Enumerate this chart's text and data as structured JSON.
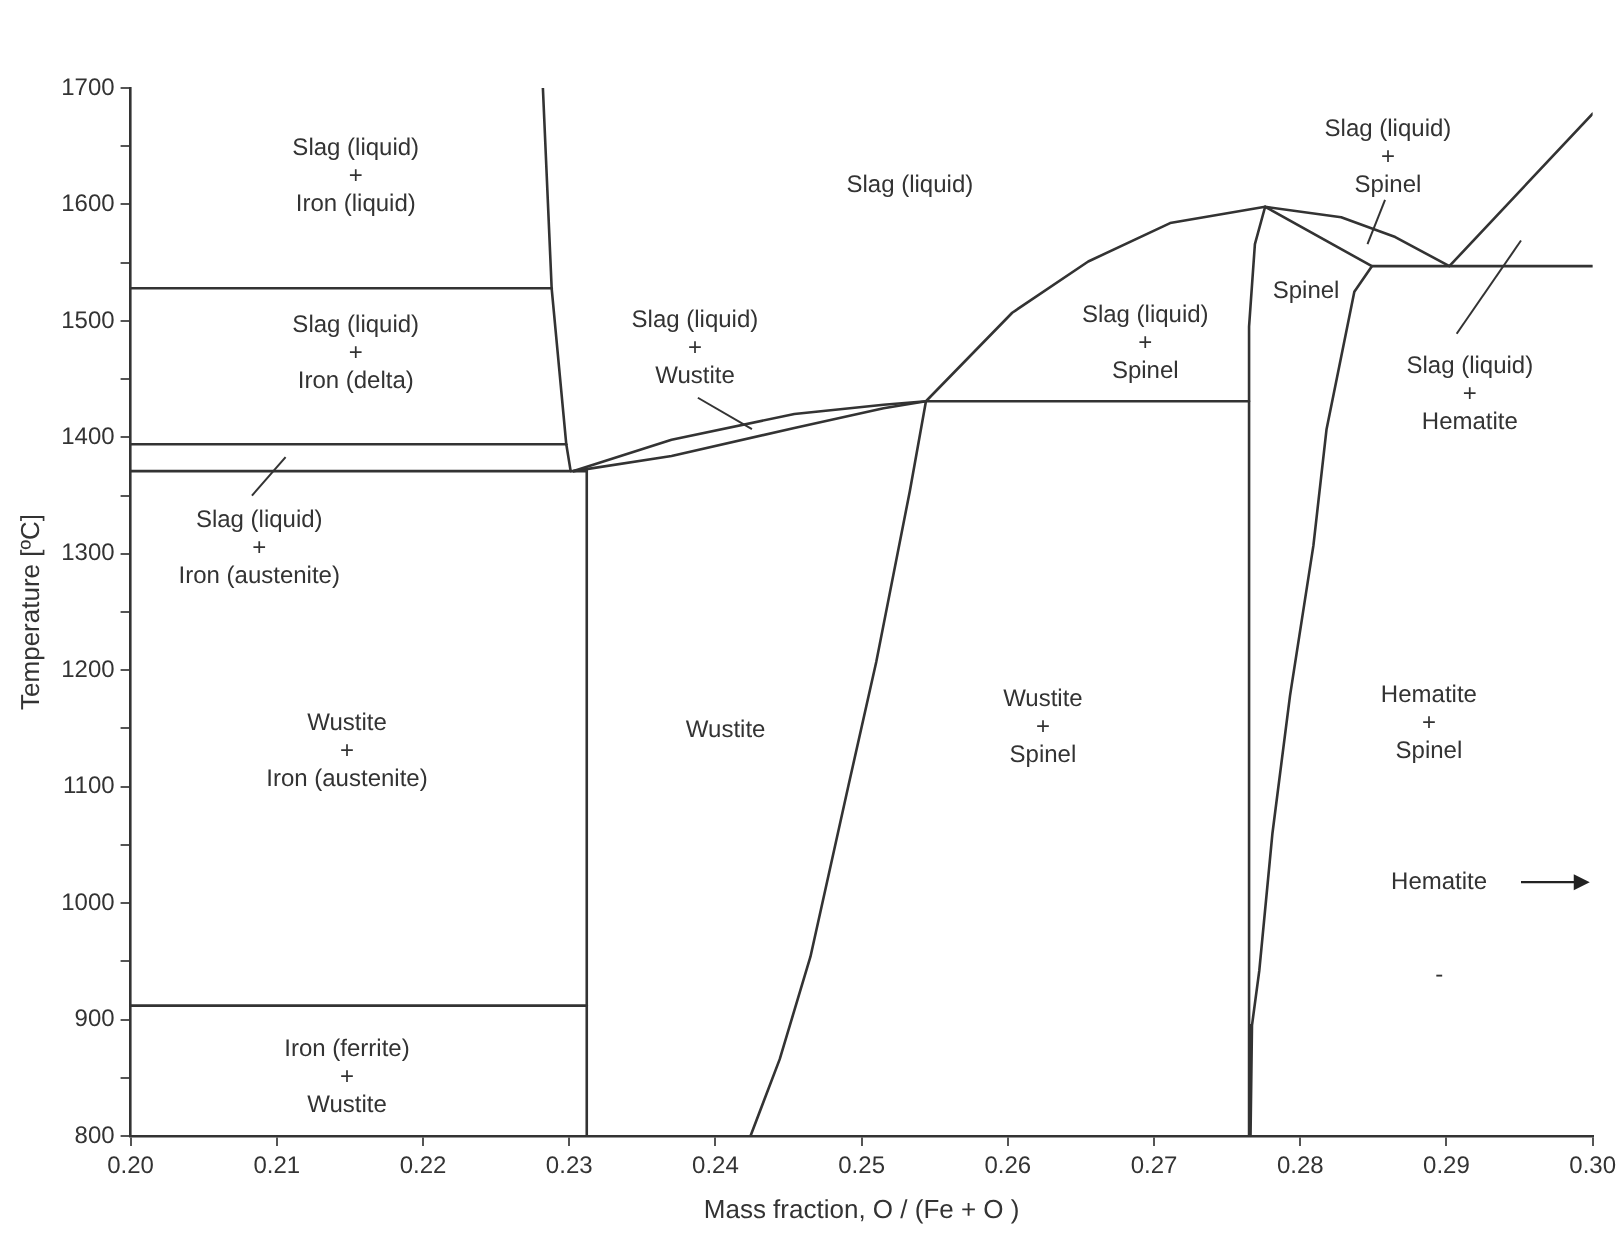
{
  "chart_data": {
    "type": "line",
    "xlabel": "Mass fraction, O / (Fe + O )",
    "ylabel": "Temperature [ºC]",
    "xlim": [
      0.2,
      0.3
    ],
    "ylim": [
      800,
      1700
    ],
    "xticks": [
      {
        "value": 0.2,
        "label": "0.20"
      },
      {
        "value": 0.21,
        "label": "0.21"
      },
      {
        "value": 0.22,
        "label": "0.22"
      },
      {
        "value": 0.23,
        "label": "0.23"
      },
      {
        "value": 0.24,
        "label": "0.24"
      },
      {
        "value": 0.25,
        "label": "0.25"
      },
      {
        "value": 0.26,
        "label": "0.26"
      },
      {
        "value": 0.27,
        "label": "0.27"
      },
      {
        "value": 0.28,
        "label": "0.28"
      },
      {
        "value": 0.29,
        "label": "0.29"
      },
      {
        "value": 0.3,
        "label": "0.30"
      }
    ],
    "yticks": [
      800,
      {
        "value": 850,
        "label": null
      },
      900,
      {
        "value": 950,
        "label": null
      },
      1000,
      {
        "value": 1050,
        "label": null
      },
      1100,
      {
        "value": 1150,
        "label": null
      },
      1200,
      {
        "value": 1250,
        "label": null
      },
      1300,
      {
        "value": 1350,
        "label": null
      },
      1400,
      {
        "value": 1450,
        "label": null
      },
      1500,
      {
        "value": 1550,
        "label": null
      },
      1600,
      {
        "value": 1650,
        "label": null
      },
      1700
    ],
    "grid": false,
    "legend": false,
    "marker": "none",
    "line_style": "solid",
    "series": [
      {
        "color": "#333333",
        "x": [
          0.2282,
          0.2288,
          0.2298,
          0.2301
        ],
        "values": [
          1700,
          1528,
          1394,
          1371
        ]
      },
      {
        "color": "#333333",
        "x": [
          0.2,
          0.2288
        ],
        "values": [
          1528,
          1528
        ]
      },
      {
        "color": "#333333",
        "x": [
          0.2,
          0.2298
        ],
        "values": [
          1394,
          1394
        ]
      },
      {
        "color": "#333333",
        "x": [
          0.2,
          0.2312
        ],
        "values": [
          1371,
          1371
        ]
      },
      {
        "color": "#333333",
        "x": [
          0.2,
          0.2312
        ],
        "values": [
          912,
          912
        ]
      },
      {
        "color": "#333333",
        "x": [
          0.2312,
          0.2312
        ],
        "values": [
          800,
          1371
        ]
      },
      {
        "color": "#333333",
        "x": [
          0.2303,
          0.237,
          0.2454,
          0.2515,
          0.2544,
          0.2765
        ],
        "values": [
          1371,
          1398,
          1420,
          1428,
          1431,
          1431
        ]
      },
      {
        "color": "#333333",
        "x": [
          0.2303,
          0.237,
          0.2454,
          0.2515,
          0.2544
        ],
        "values": [
          1371,
          1384,
          1408,
          1425,
          1431
        ]
      },
      {
        "color": "#333333",
        "x": [
          0.2544,
          0.2533,
          0.251,
          0.2491,
          0.2465,
          0.2444,
          0.2424
        ],
        "values": [
          1431,
          1354,
          1207,
          1101,
          954,
          866,
          800
        ]
      },
      {
        "color": "#333333",
        "x": [
          0.2544,
          0.2603,
          0.2655,
          0.2711,
          0.2776,
          0.2828,
          0.2865,
          0.2902,
          0.3
        ],
        "values": [
          1431,
          1507,
          1551,
          1584,
          1598,
          1589,
          1572,
          1547,
          1678
        ]
      },
      {
        "color": "#333333",
        "x": [
          0.2776,
          0.2849,
          0.3
        ],
        "values": [
          1598,
          1547,
          1547
        ]
      },
      {
        "color": "#333333",
        "x": [
          0.2776,
          0.2769,
          0.2765,
          0.2765
        ],
        "values": [
          1598,
          1566,
          1495,
          800
        ]
      },
      {
        "color": "#333333",
        "x": [
          0.2849,
          0.2837,
          0.2818,
          0.2809,
          0.2793,
          0.2781,
          0.2772,
          0.2767,
          0.2766
        ],
        "values": [
          1547,
          1525,
          1407,
          1307,
          1178,
          1060,
          942,
          895,
          800
        ]
      }
    ],
    "annotations": [
      "Slag (liquid)\n+\nIron (liquid)",
      "Slag (liquid)\n+\nIron (delta)",
      "Slag (liquid)\n+\nIron (austenite)",
      "Wustite\n+\nIron (austenite)",
      "Iron (ferrite)\n+\nWustite",
      "Slag (liquid)\n+\nWustite",
      "Slag (liquid)",
      "Wustite",
      "Wustite\n+\nSpinel",
      "Slag (liquid)\n+\nSpinel",
      "Slag (liquid)\n+\nSpinel",
      "Spinel",
      "Slag (liquid)\n+\nHematite",
      "Hematite\n+\nSpinel",
      "Hematite",
      "-"
    ]
  }
}
